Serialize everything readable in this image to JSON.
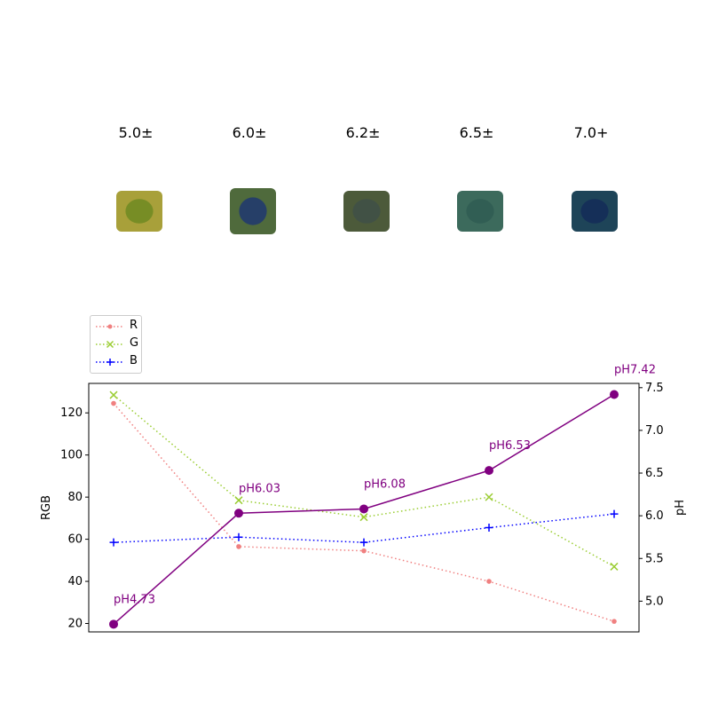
{
  "swatches": [
    {
      "label": "5.0±",
      "fill": "#a8a03a",
      "center": "#6f8a22"
    },
    {
      "label": "6.0±",
      "fill": "#4f6a3c",
      "center": "#1e3770"
    },
    {
      "label": "6.2±",
      "fill": "#4c5a3a",
      "center": "#3f5048"
    },
    {
      "label": "6.5±",
      "fill": "#3c6a5c",
      "center": "#2f5c52"
    },
    {
      "label": "7.0+",
      "fill": "#1e4458",
      "center": "#142c58"
    }
  ],
  "chart_data": {
    "type": "line",
    "x": [
      1,
      2,
      3,
      4,
      5
    ],
    "ylabel": "RGB",
    "y2label": "pH",
    "ylim": [
      16,
      134
    ],
    "y2lim": [
      4.64,
      7.55
    ],
    "yticks": [
      "20",
      "40",
      "60",
      "80",
      "100",
      "120"
    ],
    "y2ticks": [
      "5.0",
      "5.5",
      "6.0",
      "6.5",
      "7.0",
      "7.5"
    ],
    "legend_position": "upper-left, outside",
    "series": [
      {
        "name": "R",
        "axis": "left",
        "color": "#f08080",
        "marker": "dot",
        "linestyle": "dotted",
        "values": [
          124.5,
          56.5,
          54.5,
          40.0,
          21.0
        ]
      },
      {
        "name": "G",
        "axis": "left",
        "color": "#9acd32",
        "marker": "x",
        "linestyle": "dotted",
        "values": [
          128.5,
          78.5,
          70.5,
          80.0,
          47.0
        ]
      },
      {
        "name": "B",
        "axis": "left",
        "color": "#0000ff",
        "marker": "plus",
        "linestyle": "dotted",
        "values": [
          58.5,
          61.0,
          58.5,
          65.5,
          72.0
        ]
      },
      {
        "name": "",
        "axis": "right",
        "color": "#800080",
        "marker": "circle",
        "linestyle": "solid",
        "values": [
          4.73,
          6.03,
          6.08,
          6.53,
          7.42
        ],
        "labels": [
          "pH4.73",
          "pH6.03",
          "pH6.08",
          "pH6.53",
          "pH7.42"
        ]
      }
    ]
  }
}
